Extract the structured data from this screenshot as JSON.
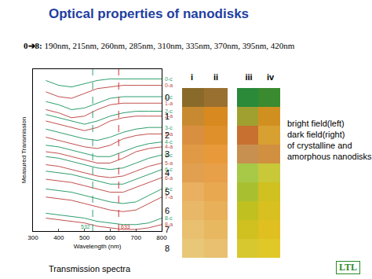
{
  "title": "Optical properties of nanodisks",
  "sizes": {
    "label": "0➔8:",
    "text": "190nm, 215nm, 260nm, 285nm, 310nm, 335nm, 370nm, 395nm, 420nm"
  },
  "chart_data": {
    "type": "line",
    "xlabel": "Wavelength (nm)",
    "ylabel": "Measured Transmission",
    "x": [
      350,
      400,
      450,
      500,
      550,
      600,
      650,
      700,
      750,
      800
    ],
    "xlim": [
      300,
      800
    ],
    "xticks": [
      300,
      400,
      500,
      600,
      700,
      800
    ],
    "ylim": [
      0,
      10
    ],
    "tick_labels": "x",
    "grid": false,
    "series": [
      {
        "name": "0-c",
        "color": "#2e9e6e",
        "line_style": "solid",
        "values": [
          9.3,
          9.0,
          8.9,
          9.1,
          9.3,
          9.4,
          9.4,
          9.4,
          9.4,
          9.4
        ]
      },
      {
        "name": "0-a",
        "color": "#c0504d",
        "line_style": "solid",
        "values": [
          8.6,
          8.3,
          8.2,
          8.5,
          8.8,
          8.9,
          9.0,
          9.0,
          9.0,
          9.0
        ]
      },
      {
        "name": "1-c",
        "color": "#2e9e6e",
        "line_style": "solid",
        "values": [
          8.0,
          7.8,
          7.5,
          7.6,
          7.9,
          8.2,
          8.3,
          8.3,
          8.3,
          8.3
        ]
      },
      {
        "name": "1-a",
        "color": "#c0504d",
        "line_style": "solid",
        "values": [
          7.5,
          7.3,
          7.0,
          7.1,
          7.5,
          7.8,
          7.9,
          7.9,
          7.9,
          7.9
        ]
      },
      {
        "name": "2-c",
        "color": "#2e9e6e",
        "line_style": "solid",
        "values": [
          7.2,
          7.0,
          6.8,
          6.6,
          6.8,
          7.1,
          7.3,
          7.4,
          7.4,
          7.4
        ]
      },
      {
        "name": "2-a",
        "color": "#c0504d",
        "line_style": "solid",
        "values": [
          6.8,
          6.6,
          6.4,
          6.2,
          6.4,
          6.8,
          7.0,
          7.1,
          7.1,
          7.1
        ]
      },
      {
        "name": "3-c",
        "color": "#2e9e6e",
        "line_style": "solid",
        "values": [
          6.3,
          6.1,
          5.9,
          5.7,
          5.6,
          5.8,
          6.1,
          6.3,
          6.4,
          6.4
        ]
      },
      {
        "name": "3-a",
        "color": "#c0504d",
        "line_style": "solid",
        "values": [
          5.8,
          5.6,
          5.4,
          5.2,
          5.1,
          5.3,
          5.7,
          5.9,
          6.0,
          6.0
        ]
      },
      {
        "name": "4-c",
        "color": "#2e9e6e",
        "line_style": "solid",
        "values": [
          5.3,
          5.2,
          5.0,
          4.8,
          4.6,
          4.6,
          4.9,
          5.2,
          5.4,
          5.5
        ]
      },
      {
        "name": "4-a",
        "color": "#c0504d",
        "line_style": "solid",
        "values": [
          4.9,
          4.8,
          4.6,
          4.4,
          4.2,
          4.2,
          4.5,
          4.9,
          5.1,
          5.2
        ]
      },
      {
        "name": "5-c",
        "color": "#2e9e6e",
        "line_style": "solid",
        "values": [
          4.6,
          4.5,
          4.3,
          4.1,
          3.9,
          3.8,
          3.9,
          4.2,
          4.5,
          4.7
        ]
      },
      {
        "name": "5-a",
        "color": "#c0504d",
        "line_style": "solid",
        "values": [
          4.1,
          4.0,
          3.8,
          3.6,
          3.4,
          3.3,
          3.4,
          3.7,
          4.0,
          4.2
        ]
      },
      {
        "name": "6-c",
        "color": "#2e9e6e",
        "line_style": "solid",
        "values": [
          3.7,
          3.6,
          3.5,
          3.3,
          3.1,
          2.9,
          2.9,
          3.2,
          3.5,
          3.8
        ]
      },
      {
        "name": "6-a",
        "color": "#c0504d",
        "line_style": "solid",
        "values": [
          3.2,
          3.1,
          3.0,
          2.8,
          2.6,
          2.4,
          2.4,
          2.7,
          3.0,
          3.3
        ]
      },
      {
        "name": "7-c",
        "color": "#2e9e6e",
        "line_style": "solid",
        "values": [
          2.6,
          2.5,
          2.4,
          2.2,
          2.0,
          1.8,
          1.7,
          1.8,
          2.2,
          2.6
        ]
      },
      {
        "name": "7-a",
        "color": "#c0504d",
        "line_style": "solid",
        "values": [
          2.1,
          2.0,
          1.9,
          1.7,
          1.5,
          1.3,
          1.2,
          1.3,
          1.7,
          2.1
        ]
      },
      {
        "name": "8-c",
        "color": "#2e9e6e",
        "line_style": "solid",
        "values": [
          1.1,
          1.0,
          0.9,
          0.8,
          0.6,
          0.5,
          0.4,
          0.4,
          0.5,
          0.8
        ]
      },
      {
        "name": "8-a",
        "color": "#c0504d",
        "line_style": "solid",
        "values": [
          0.8,
          0.7,
          0.6,
          0.5,
          0.3,
          0.2,
          0.1,
          0.1,
          0.2,
          0.4
        ]
      }
    ],
    "vertical_lines": [
      {
        "x": 532,
        "label": "532",
        "color": "#2e9e6e",
        "line_style": "dash"
      },
      {
        "x": 633,
        "label": "633",
        "color": "#d03030",
        "line_style": "dash"
      }
    ]
  },
  "chart_caption": "Transmission spectra",
  "nanodisk_images": {
    "columns": [
      "i",
      "ii",
      "iii",
      "iv"
    ],
    "rows": [
      "0",
      "1",
      "2",
      "3",
      "4",
      "5",
      "6",
      "7",
      "8"
    ],
    "colors": [
      [
        "#8a6a2a",
        "#9a7030",
        "#2a8a3a",
        "#3a8a30"
      ],
      [
        "#c88a30",
        "#d88a20",
        "#a0a030",
        "#d09020"
      ],
      [
        "#d89040",
        "#e0902a",
        "#c87030",
        "#d8a030"
      ],
      [
        "#e09a45",
        "#e89a3a",
        "#c89050",
        "#d09040"
      ],
      [
        "#e0a050",
        "#e8a048",
        "#a8c848",
        "#c8c838"
      ],
      [
        "#e8b060",
        "#e8a850",
        "#a8c030",
        "#d0c020"
      ],
      [
        "#e8b868",
        "#e8b058",
        "#c0c020",
        "#d8c020"
      ],
      [
        "#e8c070",
        "#e8b860",
        "#d0c020",
        "#e0c020"
      ],
      [
        "#e8c878",
        "#e8c070",
        "#d8c830",
        "#e0c828"
      ]
    ]
  },
  "caption": [
    "bright field(left)",
    "dark field(right)",
    "of crystalline and",
    "amorphous nanodisks"
  ],
  "logo": "LTL"
}
